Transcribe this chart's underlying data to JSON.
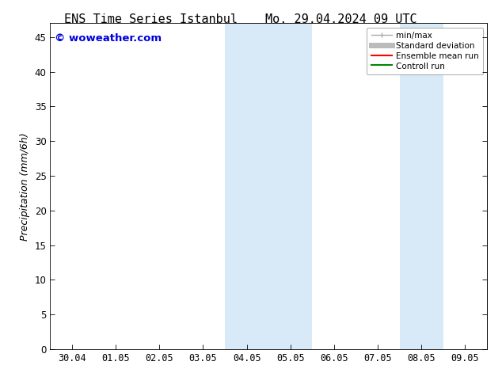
{
  "title_left": "ENS Time Series Istanbul",
  "title_right": "Mo. 29.04.2024 09 UTC",
  "ylabel": "Precipitation (mm/6h)",
  "watermark": "© woweather.com",
  "watermark_color": "#0000dd",
  "background_color": "#ffffff",
  "plot_bg_color": "#ffffff",
  "ylim": [
    0,
    47
  ],
  "yticks": [
    0,
    5,
    10,
    15,
    20,
    25,
    30,
    35,
    40,
    45
  ],
  "xtick_labels": [
    "30.04",
    "01.05",
    "02.05",
    "03.05",
    "04.05",
    "05.05",
    "06.05",
    "07.05",
    "08.05",
    "09.05"
  ],
  "xtick_positions": [
    0,
    1,
    2,
    3,
    4,
    5,
    6,
    7,
    8,
    9
  ],
  "xlim": [
    -0.5,
    9.5
  ],
  "shaded_regions": [
    {
      "x_start": 3.5,
      "x_end": 4.5,
      "color": "#d8eaf7"
    },
    {
      "x_start": 4.5,
      "x_end": 5.5,
      "color": "#d8eaf7"
    },
    {
      "x_start": 7.5,
      "x_end": 8.5,
      "color": "#d8eaf7"
    }
  ],
  "legend_items": [
    {
      "label": "min/max",
      "color": "#aaaaaa",
      "lw": 1.0,
      "ls": "-",
      "type": "errorbar"
    },
    {
      "label": "Standard deviation",
      "color": "#bbbbbb",
      "lw": 5,
      "ls": "-",
      "type": "line"
    },
    {
      "label": "Ensemble mean run",
      "color": "#ff0000",
      "lw": 1.5,
      "ls": "-",
      "type": "line"
    },
    {
      "label": "Controll run",
      "color": "#008800",
      "lw": 1.5,
      "ls": "-",
      "type": "line"
    }
  ],
  "title_fontsize": 11,
  "tick_fontsize": 8.5,
  "ylabel_fontsize": 9,
  "watermark_fontsize": 9.5,
  "legend_fontsize": 7.5
}
